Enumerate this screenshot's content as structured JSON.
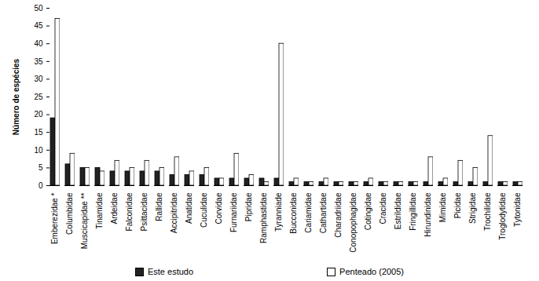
{
  "chart_data": {
    "type": "bar",
    "y_label": "Número de espécies",
    "categories": [
      "Emberezidae *",
      "Columbidae",
      "Muscicapidae **",
      "Tinamidae",
      "Ardeidae",
      "Falconidae",
      "Psittacidae",
      "Rallidae",
      "Accipitridae",
      "Anatidae",
      "Cuculidae",
      "Corvidae",
      "Furnariidae",
      "Pipridae",
      "Ramphastidae",
      "Tyranniade",
      "Bucconidae",
      "Cariamidae",
      "Cathartidae",
      "Charadriidae",
      "Conopophagidae",
      "Cotingidae",
      "Cracidae",
      "Estrildidae",
      "Fringillidae",
      "Hirundinidae",
      "Mimidae",
      "Picidae",
      "Strigidae",
      "Trochilidae",
      "Troglodytidae",
      "Tytonidae"
    ],
    "series": [
      {
        "name": "Este estudo",
        "color": "#222222",
        "values": [
          19,
          6,
          5,
          5,
          4,
          4,
          4,
          4,
          3,
          3,
          3,
          2,
          2,
          2,
          2,
          2,
          1,
          1,
          1,
          1,
          1,
          1,
          1,
          1,
          1,
          1,
          1,
          1,
          1,
          1,
          1,
          1
        ]
      },
      {
        "name": "Penteado (2005)",
        "color": "#ffffff",
        "values": [
          47,
          9,
          5,
          4,
          7,
          5,
          7,
          5,
          8,
          4,
          5,
          2,
          9,
          3,
          1,
          40,
          2,
          1,
          2,
          1,
          1,
          2,
          1,
          1,
          1,
          8,
          2,
          7,
          5,
          14,
          1,
          1
        ]
      }
    ],
    "ylim": [
      0,
      50
    ],
    "yticks": [
      0,
      5,
      10,
      15,
      20,
      25,
      30,
      35,
      40,
      45,
      50
    ],
    "grid": false,
    "legend": "bottom"
  }
}
